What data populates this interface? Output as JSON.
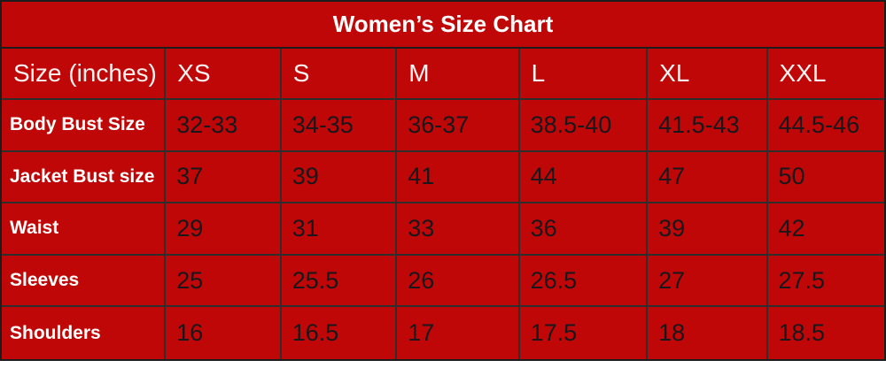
{
  "title": "Women’s Size Chart",
  "colors": {
    "accent_red": "#c00707",
    "row_light": "#edf2f9",
    "row_blue": "#dce6f1",
    "border": "#1c1c1c",
    "title_text": "#ffffff",
    "data_text": "#17171c"
  },
  "table": {
    "header": [
      "Size (inches)",
      "XS",
      "S",
      "M",
      "L",
      "XL",
      "XXL"
    ],
    "rows": [
      {
        "label": "Body Bust Size",
        "values": [
          "32-33",
          "34-35",
          "36-37",
          "38.5-40",
          "41.5-43",
          "44.5-46"
        ]
      },
      {
        "label": "Jacket Bust size",
        "values": [
          "37",
          "39",
          "41",
          "44",
          "47",
          "50"
        ]
      },
      {
        "label": "Waist",
        "values": [
          "29",
          "31",
          "33",
          "36",
          "39",
          "42"
        ]
      },
      {
        "label": "Sleeves",
        "values": [
          "25",
          "25.5",
          "26",
          "26.5",
          "27",
          "27.5"
        ]
      },
      {
        "label": "Shoulders",
        "values": [
          "16",
          "16.5",
          "17",
          "17.5",
          "18",
          "18.5"
        ]
      }
    ]
  },
  "chart_data": {
    "type": "table",
    "title": "Women’s Size Chart",
    "units": "inches",
    "columns": [
      "Size (inches)",
      "XS",
      "S",
      "M",
      "L",
      "XL",
      "XXL"
    ],
    "rows": [
      [
        "Body Bust Size",
        "32-33",
        "34-35",
        "36-37",
        "38.5-40",
        "41.5-43",
        "44.5-46"
      ],
      [
        "Jacket Bust size",
        "37",
        "39",
        "41",
        "44",
        "47",
        "50"
      ],
      [
        "Waist",
        "29",
        "31",
        "33",
        "36",
        "39",
        "42"
      ],
      [
        "Sleeves",
        "25",
        "25.5",
        "26",
        "26.5",
        "27",
        "27.5"
      ],
      [
        "Shoulders",
        "16",
        "16.5",
        "17",
        "17.5",
        "18",
        "18.5"
      ]
    ]
  }
}
